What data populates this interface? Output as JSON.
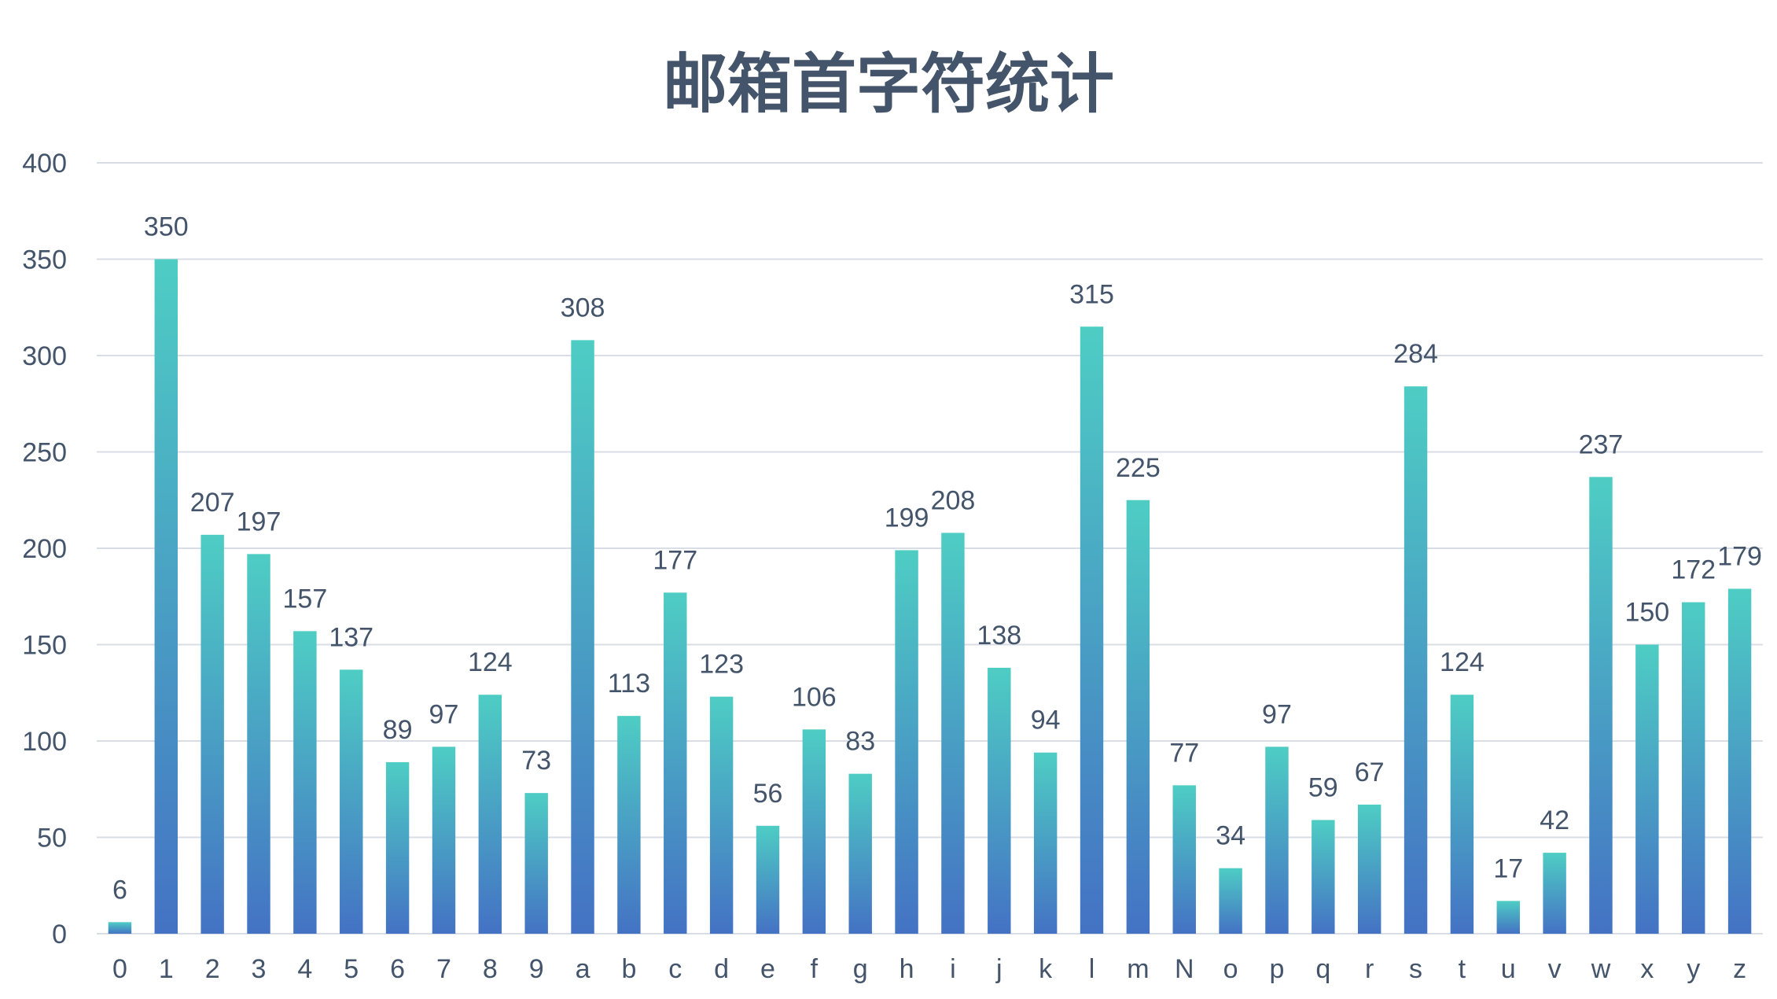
{
  "chart_data": {
    "type": "bar",
    "title": "邮箱首字符统计",
    "xlabel": "",
    "ylabel": "",
    "ylim": [
      0,
      400
    ],
    "yticks": [
      0,
      50,
      100,
      150,
      200,
      250,
      300,
      350,
      400
    ],
    "grid": true,
    "legend": "none",
    "categories": [
      "0",
      "1",
      "2",
      "3",
      "4",
      "5",
      "6",
      "7",
      "8",
      "9",
      "a",
      "b",
      "c",
      "d",
      "e",
      "f",
      "g",
      "h",
      "i",
      "j",
      "k",
      "l",
      "m",
      "N",
      "o",
      "p",
      "q",
      "r",
      "s",
      "t",
      "u",
      "v",
      "w",
      "x",
      "y",
      "z"
    ],
    "values": [
      6,
      350,
      207,
      197,
      157,
      137,
      89,
      97,
      124,
      73,
      308,
      113,
      177,
      123,
      56,
      106,
      83,
      199,
      208,
      138,
      94,
      315,
      225,
      77,
      34,
      97,
      59,
      67,
      284,
      124,
      17,
      42,
      237,
      150,
      172,
      179
    ],
    "colors": {
      "bar_top": "#4ecdc4",
      "bar_bottom": "#4472c4",
      "text": "#44546a",
      "grid": "#d9dde6"
    }
  }
}
